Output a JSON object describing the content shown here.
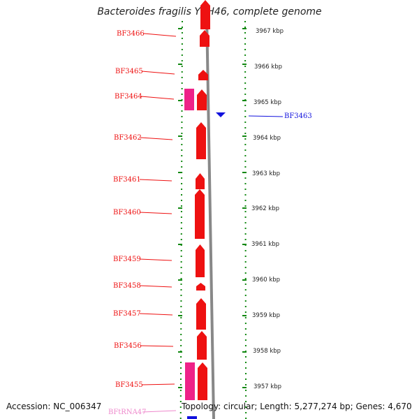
{
  "title": "Bacteroides fragilis YCH46, complete genome",
  "footer": {
    "accession": "Accession: NC_006347",
    "summary": "Topology: circular; Length: 5,277,274 bp; Genes: 4,670"
  },
  "colors": {
    "gene_forward": "#ee1111",
    "gene_pink": "#ee2288",
    "gene_reverse": "#1111dd",
    "rna_label": "#ee88cc",
    "tick": "#118811",
    "backbone": "#888888"
  },
  "kbp_labels": [
    "3967 kbp",
    "3966 kbp",
    "3965 kbp",
    "3964 kbp",
    "3963 kbp",
    "3962 kbp",
    "3961 kbp",
    "3960 kbp",
    "3959 kbp",
    "3958 kbp",
    "3957 kbp"
  ],
  "genes": [
    {
      "label": "BF3466",
      "color": "red"
    },
    {
      "label": "BF3465",
      "color": "red"
    },
    {
      "label": "BF3464",
      "color": "red"
    },
    {
      "label": "BF3463",
      "color": "blue"
    },
    {
      "label": "BF3462",
      "color": "red"
    },
    {
      "label": "BF3461",
      "color": "red"
    },
    {
      "label": "BF3460",
      "color": "red"
    },
    {
      "label": "BF3459",
      "color": "red"
    },
    {
      "label": "BF3458",
      "color": "red"
    },
    {
      "label": "BF3457",
      "color": "red"
    },
    {
      "label": "BF3456",
      "color": "red"
    },
    {
      "label": "BF3455",
      "color": "red"
    },
    {
      "label": "BFtRNA47",
      "color": "pink"
    }
  ]
}
